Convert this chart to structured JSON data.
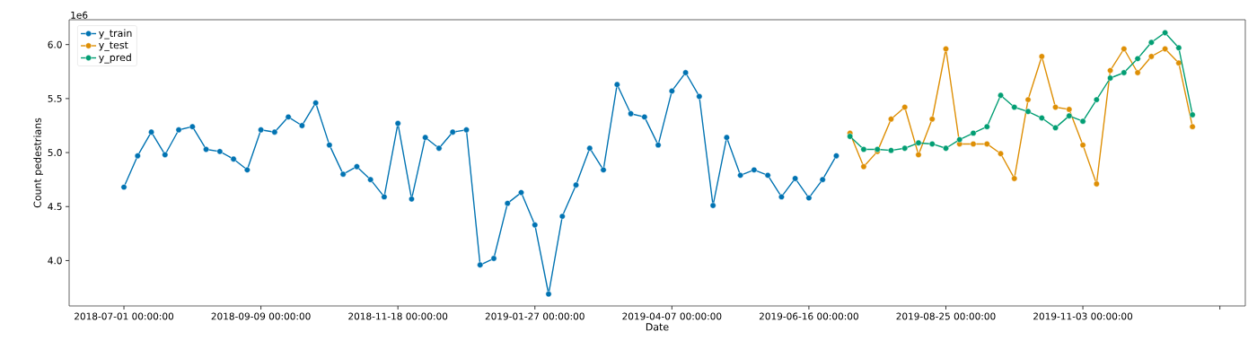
{
  "chart_data": {
    "type": "line",
    "xlabel": "Date",
    "ylabel": "Count pedestrians",
    "annotations": [
      "1e6"
    ],
    "xlim": [
      "2018-06-03",
      "2020-01-25"
    ],
    "xticks": [
      {
        "value": "2018-07-01",
        "label": "2018-07-01 00:00:00"
      },
      {
        "value": "2018-09-09",
        "label": "2018-09-09 00:00:00"
      },
      {
        "value": "2018-11-18",
        "label": "2018-11-18 00:00:00"
      },
      {
        "value": "2019-01-27",
        "label": "2019-01-27 00:00:00"
      },
      {
        "value": "2019-04-07",
        "label": "2019-04-07 00:00:00"
      },
      {
        "value": "2019-06-16",
        "label": "2019-06-16 00:00:00"
      },
      {
        "value": "2019-08-25",
        "label": "2019-08-25 00:00:00"
      },
      {
        "value": "2019-11-03",
        "label": "2019-11-03 00:00:00"
      },
      {
        "value": "2020-01-12",
        "label": null
      }
    ],
    "ylim": [
      3.58,
      6.23
    ],
    "yticks": [
      {
        "value": 4.0,
        "label": "4.0"
      },
      {
        "value": 4.5,
        "label": "4.5"
      },
      {
        "value": 5.0,
        "label": "5.0"
      },
      {
        "value": 5.5,
        "label": "5.5"
      },
      {
        "value": 6.0,
        "label": "6.0"
      }
    ],
    "legend": "top left",
    "marker": "circle",
    "line_style": "solid",
    "series": [
      {
        "name": "y_train",
        "color": "#0173b2",
        "x": [
          "2018-07-01",
          "2018-07-08",
          "2018-07-15",
          "2018-07-22",
          "2018-07-29",
          "2018-08-05",
          "2018-08-12",
          "2018-08-19",
          "2018-08-26",
          "2018-09-02",
          "2018-09-09",
          "2018-09-16",
          "2018-09-23",
          "2018-09-30",
          "2018-10-07",
          "2018-10-14",
          "2018-10-21",
          "2018-10-28",
          "2018-11-04",
          "2018-11-11",
          "2018-11-18",
          "2018-11-25",
          "2018-12-02",
          "2018-12-09",
          "2018-12-16",
          "2018-12-23",
          "2018-12-30",
          "2019-01-06",
          "2019-01-13",
          "2019-01-20",
          "2019-01-27",
          "2019-02-03",
          "2019-02-10",
          "2019-02-17",
          "2019-02-24",
          "2019-03-03",
          "2019-03-10",
          "2019-03-17",
          "2019-03-24",
          "2019-03-31",
          "2019-04-07",
          "2019-04-14",
          "2019-04-21",
          "2019-04-28",
          "2019-05-05",
          "2019-05-12",
          "2019-05-19",
          "2019-05-26",
          "2019-06-02",
          "2019-06-09",
          "2019-06-16",
          "2019-06-23",
          "2019-06-30"
        ],
        "values": [
          4.68,
          4.97,
          5.19,
          4.98,
          5.21,
          5.24,
          5.03,
          5.01,
          4.94,
          4.84,
          5.21,
          5.19,
          5.33,
          5.25,
          5.46,
          5.07,
          4.8,
          4.87,
          4.75,
          4.59,
          5.27,
          4.57,
          5.14,
          5.04,
          5.19,
          5.21,
          3.96,
          4.02,
          4.53,
          4.63,
          4.33,
          3.69,
          4.41,
          4.7,
          5.04,
          4.84,
          5.63,
          5.36,
          5.33,
          5.07,
          5.57,
          5.74,
          5.52,
          4.51,
          5.14,
          4.79,
          4.84,
          4.79,
          4.59,
          4.76,
          4.58,
          4.75,
          4.97
        ]
      },
      {
        "name": "y_test",
        "color": "#de8f05",
        "x": [
          "2019-07-07",
          "2019-07-14",
          "2019-07-21",
          "2019-07-28",
          "2019-08-04",
          "2019-08-11",
          "2019-08-18",
          "2019-08-25",
          "2019-09-01",
          "2019-09-08",
          "2019-09-15",
          "2019-09-22",
          "2019-09-29",
          "2019-10-06",
          "2019-10-13",
          "2019-10-20",
          "2019-10-27",
          "2019-11-03",
          "2019-11-10",
          "2019-11-17",
          "2019-11-24",
          "2019-12-01",
          "2019-12-08",
          "2019-12-15",
          "2019-12-22",
          "2019-12-29"
        ],
        "values": [
          5.18,
          4.87,
          5.01,
          5.31,
          5.42,
          4.98,
          5.31,
          5.96,
          5.08,
          5.08,
          5.08,
          4.99,
          4.76,
          5.49,
          5.89,
          5.42,
          5.4,
          5.07,
          4.71,
          5.76,
          5.96,
          5.74,
          5.89,
          5.96,
          5.83,
          5.24
        ]
      },
      {
        "name": "y_pred",
        "color": "#029e73",
        "x": [
          "2019-07-07",
          "2019-07-14",
          "2019-07-21",
          "2019-07-28",
          "2019-08-04",
          "2019-08-11",
          "2019-08-18",
          "2019-08-25",
          "2019-09-01",
          "2019-09-08",
          "2019-09-15",
          "2019-09-22",
          "2019-09-29",
          "2019-10-06",
          "2019-10-13",
          "2019-10-20",
          "2019-10-27",
          "2019-11-03",
          "2019-11-10",
          "2019-11-17",
          "2019-11-24",
          "2019-12-01",
          "2019-12-08",
          "2019-12-15",
          "2019-12-22",
          "2019-12-29"
        ],
        "values": [
          5.15,
          5.03,
          5.03,
          5.02,
          5.04,
          5.09,
          5.08,
          5.04,
          5.12,
          5.18,
          5.24,
          5.53,
          5.42,
          5.38,
          5.32,
          5.23,
          5.34,
          5.29,
          5.49,
          5.69,
          5.74,
          5.87,
          6.02,
          6.11,
          5.97,
          5.35
        ]
      }
    ]
  }
}
